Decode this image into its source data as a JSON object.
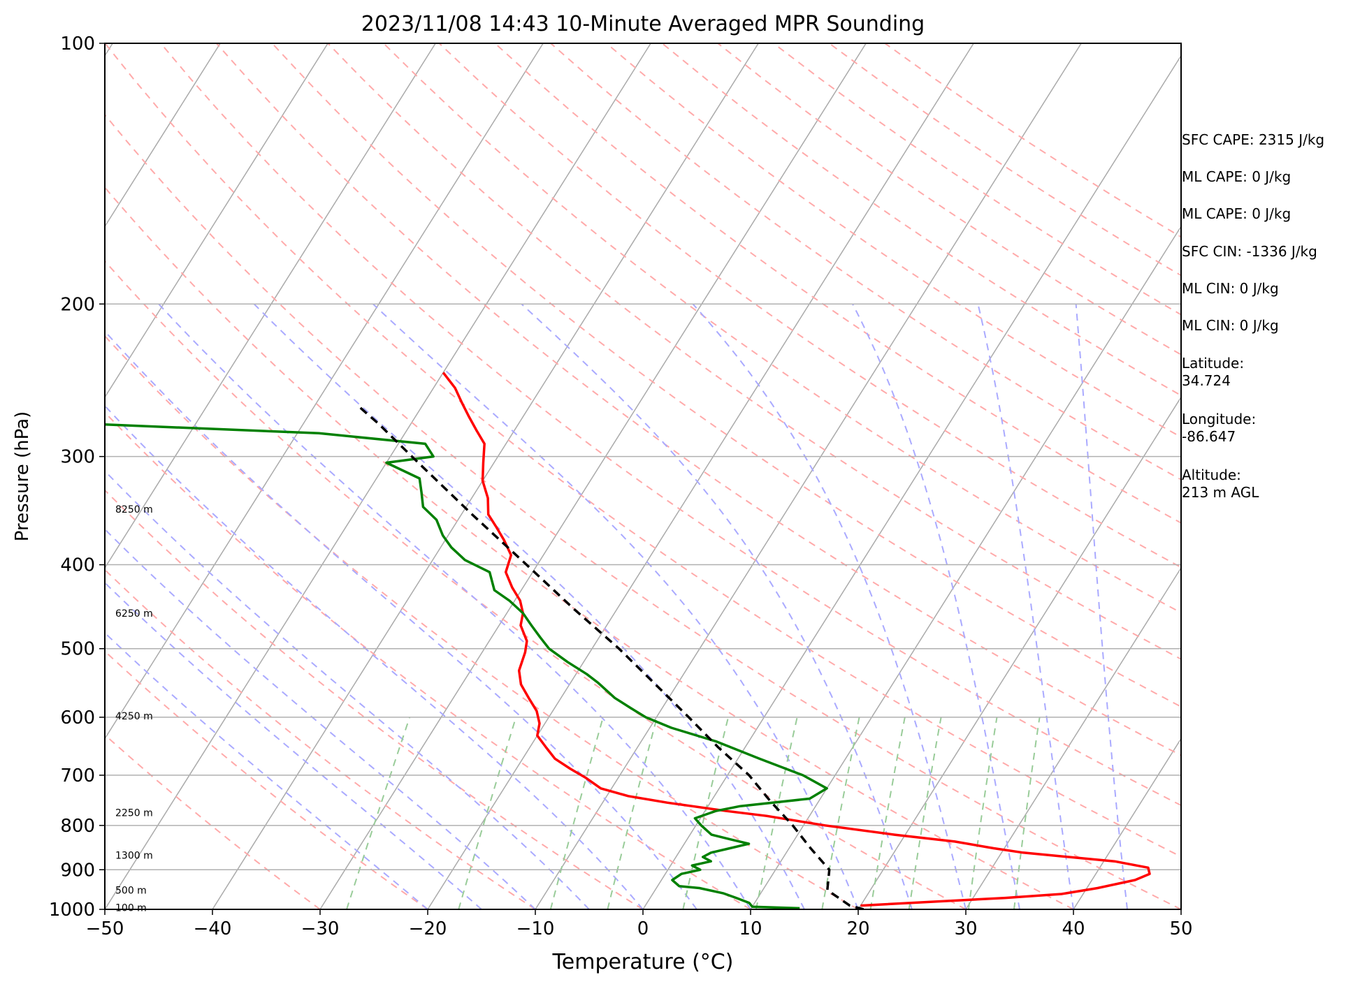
{
  "chart_data": {
    "type": "line",
    "title": "2023/11/08 14:43 10-Minute Averaged MPR Sounding",
    "xlabel": "Temperature (°C)",
    "ylabel": "Pressure (hPa)",
    "xlim": [
      -50,
      50
    ],
    "ylim": [
      1000,
      100
    ],
    "y_scale": "log",
    "skew": "skew-T",
    "grid": true,
    "xticks": [
      -50,
      -40,
      -30,
      -20,
      -10,
      0,
      10,
      20,
      30,
      40,
      50
    ],
    "xtick_labels": [
      "−50",
      "−40",
      "−30",
      "−20",
      "−10",
      "0",
      "10",
      "20",
      "30",
      "40",
      "50"
    ],
    "yticks": [
      1000,
      900,
      800,
      700,
      600,
      500,
      400,
      300,
      200,
      100
    ],
    "ytick_labels": [
      "1000",
      "900",
      "800",
      "700",
      "600",
      "500",
      "400",
      "300",
      "200",
      "100"
    ],
    "series": [
      {
        "color": "#ff0000",
        "points": [
          {
            "t": 20.0,
            "p": 990
          },
          {
            "t": 33.0,
            "p": 970
          },
          {
            "t": 38.0,
            "p": 960
          },
          {
            "t": 41.0,
            "p": 945
          },
          {
            "t": 44.0,
            "p": 925
          },
          {
            "t": 45.0,
            "p": 910
          },
          {
            "t": 44.5,
            "p": 895
          },
          {
            "t": 41.0,
            "p": 880
          },
          {
            "t": 32.0,
            "p": 860
          },
          {
            "t": 29.0,
            "p": 850
          },
          {
            "t": 25.0,
            "p": 835
          },
          {
            "t": 19.0,
            "p": 820
          },
          {
            "t": 12.0,
            "p": 800
          },
          {
            "t": 6.0,
            "p": 780
          },
          {
            "t": 2.0,
            "p": 770
          },
          {
            "t": -4.0,
            "p": 753
          },
          {
            "t": -8.0,
            "p": 740
          },
          {
            "t": -11.0,
            "p": 725
          },
          {
            "t": -13.0,
            "p": 705
          },
          {
            "t": -15.0,
            "p": 688
          },
          {
            "t": -17.0,
            "p": 670
          },
          {
            "t": -18.5,
            "p": 650
          },
          {
            "t": -20.0,
            "p": 630
          },
          {
            "t": -20.5,
            "p": 610
          },
          {
            "t": -21.5,
            "p": 590
          },
          {
            "t": -23.0,
            "p": 570
          },
          {
            "t": -24.5,
            "p": 550
          },
          {
            "t": -25.5,
            "p": 530
          },
          {
            "t": -26.0,
            "p": 505
          },
          {
            "t": -26.5,
            "p": 490
          },
          {
            "t": -28.0,
            "p": 470
          },
          {
            "t": -28.5,
            "p": 455
          },
          {
            "t": -29.5,
            "p": 440
          },
          {
            "t": -31.0,
            "p": 425
          },
          {
            "t": -32.5,
            "p": 408
          },
          {
            "t": -33.0,
            "p": 390
          },
          {
            "t": -34.5,
            "p": 375
          },
          {
            "t": -36.0,
            "p": 362
          },
          {
            "t": -37.5,
            "p": 350
          },
          {
            "t": -38.5,
            "p": 335
          },
          {
            "t": -40.0,
            "p": 320
          },
          {
            "t": -41.0,
            "p": 305
          },
          {
            "t": -42.0,
            "p": 290
          },
          {
            "t": -43.5,
            "p": 280
          },
          {
            "t": -45.0,
            "p": 270
          },
          {
            "t": -46.5,
            "p": 260
          },
          {
            "t": -48.0,
            "p": 250
          },
          {
            "t": -50.0,
            "p": 240
          }
        ]
      },
      {
        "color": "#008000",
        "points": [
          {
            "t": 14.5,
            "p": 997
          },
          {
            "t": 10.0,
            "p": 993
          },
          {
            "t": 9.5,
            "p": 983
          },
          {
            "t": 8.0,
            "p": 970
          },
          {
            "t": 6.5,
            "p": 958
          },
          {
            "t": 4.0,
            "p": 945
          },
          {
            "t": 2.0,
            "p": 940
          },
          {
            "t": 1.0,
            "p": 925
          },
          {
            "t": 1.5,
            "p": 910
          },
          {
            "t": 3.0,
            "p": 900
          },
          {
            "t": 2.0,
            "p": 890
          },
          {
            "t": 3.5,
            "p": 880
          },
          {
            "t": 2.5,
            "p": 870
          },
          {
            "t": 3.0,
            "p": 860
          },
          {
            "t": 4.5,
            "p": 850
          },
          {
            "t": 6.0,
            "p": 840
          },
          {
            "t": 4.0,
            "p": 830
          },
          {
            "t": 2.0,
            "p": 820
          },
          {
            "t": 0.5,
            "p": 800
          },
          {
            "t": -0.5,
            "p": 785
          },
          {
            "t": 1.0,
            "p": 770
          },
          {
            "t": 3.0,
            "p": 760
          },
          {
            "t": 9.0,
            "p": 745
          },
          {
            "t": 10.0,
            "p": 725
          },
          {
            "t": 7.0,
            "p": 700
          },
          {
            "t": 2.0,
            "p": 670
          },
          {
            "t": -3.0,
            "p": 640
          },
          {
            "t": -8.0,
            "p": 617
          },
          {
            "t": -11.0,
            "p": 600
          },
          {
            "t": -13.0,
            "p": 585
          },
          {
            "t": -15.0,
            "p": 570
          },
          {
            "t": -17.5,
            "p": 547
          },
          {
            "t": -19.0,
            "p": 535
          },
          {
            "t": -21.5,
            "p": 518
          },
          {
            "t": -24.0,
            "p": 500
          },
          {
            "t": -25.5,
            "p": 485
          },
          {
            "t": -27.0,
            "p": 470
          },
          {
            "t": -28.5,
            "p": 455
          },
          {
            "t": -30.5,
            "p": 440
          },
          {
            "t": -32.5,
            "p": 428
          },
          {
            "t": -34.0,
            "p": 408
          },
          {
            "t": -37.0,
            "p": 395
          },
          {
            "t": -39.0,
            "p": 382
          },
          {
            "t": -40.5,
            "p": 370
          },
          {
            "t": -42.0,
            "p": 355
          },
          {
            "t": -44.0,
            "p": 343
          },
          {
            "t": -45.0,
            "p": 330
          },
          {
            "t": -46.0,
            "p": 318
          },
          {
            "t": -50.0,
            "p": 305
          },
          {
            "t": -46.0,
            "p": 300
          },
          {
            "t": -47.5,
            "p": 290
          },
          {
            "t": -58.0,
            "p": 282
          },
          {
            "t": -80.0,
            "p": 275
          }
        ]
      },
      {
        "color": "#000000",
        "dashed": true,
        "points": [
          {
            "t": 20.5,
            "p": 1000
          },
          {
            "t": 19.0,
            "p": 990
          },
          {
            "t": 16.0,
            "p": 950
          },
          {
            "t": 15.0,
            "p": 900
          },
          {
            "t": 12.0,
            "p": 850
          },
          {
            "t": 9.0,
            "p": 800
          },
          {
            "t": 5.5,
            "p": 750
          },
          {
            "t": 2.0,
            "p": 700
          },
          {
            "t": -2.5,
            "p": 650
          },
          {
            "t": -7.0,
            "p": 600
          },
          {
            "t": -12.0,
            "p": 550
          },
          {
            "t": -17.5,
            "p": 500
          },
          {
            "t": -24.0,
            "p": 450
          },
          {
            "t": -31.0,
            "p": 400
          },
          {
            "t": -39.0,
            "p": 350
          },
          {
            "t": -48.0,
            "p": 300
          },
          {
            "t": -53.0,
            "p": 275
          },
          {
            "t": -56.0,
            "p": 262
          }
        ]
      }
    ],
    "height_labels": [
      {
        "text": "8250 m",
        "p": 345
      },
      {
        "text": "6250 m",
        "p": 455
      },
      {
        "text": "4250 m",
        "p": 598
      },
      {
        "text": "2250 m",
        "p": 773
      },
      {
        "text": "1300 m",
        "p": 866
      },
      {
        "text": "500 m",
        "p": 950
      },
      {
        "text": "100 m",
        "p": 995
      }
    ],
    "background_lines": {
      "isotherm_color": "#aaaaaa",
      "dry_adiabat_color": "#ffaaaa",
      "moist_adiabat_color": "#aaaaff",
      "mixing_ratio_color": "#99cc99"
    }
  },
  "side_panel": [
    "SFC CAPE: 2315 J/kg",
    "ML CAPE: 0 J/kg",
    "ML CAPE: 0 J/kg",
    "SFC CIN: -1336 J/kg",
    "ML CIN: 0 J/kg",
    "ML CIN: 0 J/kg",
    "Latitude:\n34.724",
    "Longitude:\n-86.647",
    "Altitude:\n213 m AGL"
  ]
}
